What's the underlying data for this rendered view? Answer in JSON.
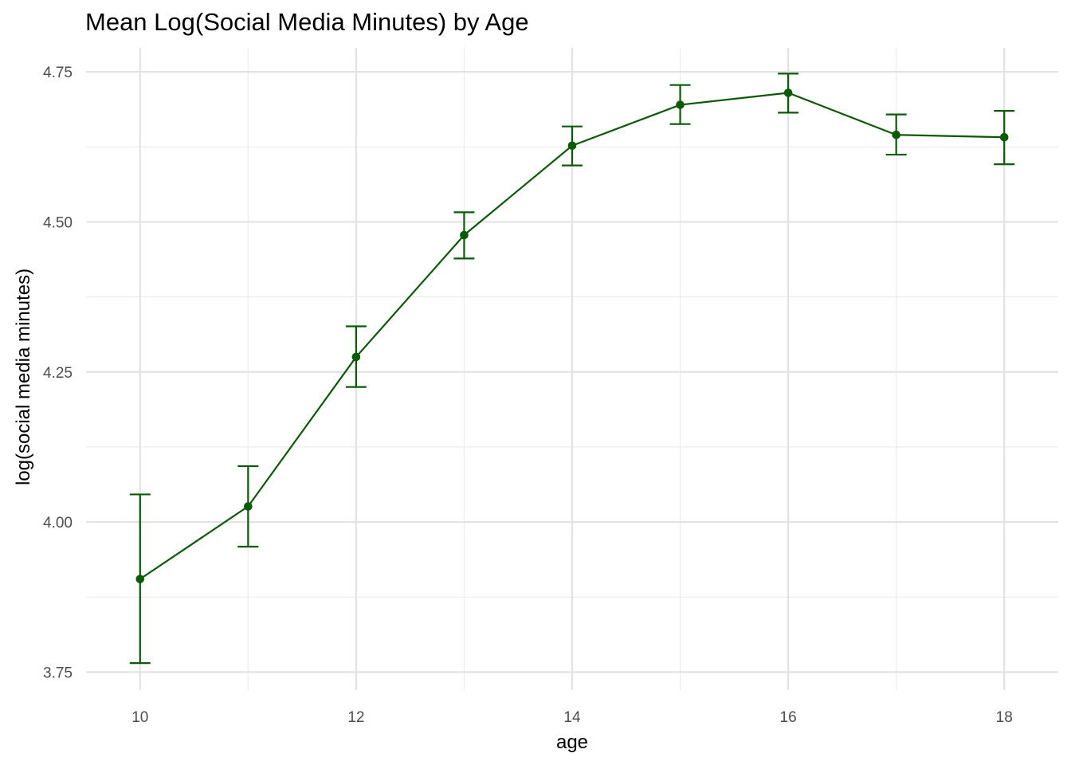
{
  "chart_data": {
    "type": "line",
    "title": "Mean Log(Social Media Minutes) by Age",
    "xlabel": "age",
    "ylabel": "log(social media minutes)",
    "x_ticks": [
      10,
      12,
      14,
      16,
      18
    ],
    "x_tick_labels": [
      "10",
      "12",
      "14",
      "16",
      "18"
    ],
    "y_ticks": [
      3.75,
      4.0,
      4.25,
      4.5,
      4.75
    ],
    "y_tick_labels": [
      "3.75",
      "4.00",
      "4.25",
      "4.50",
      "4.75"
    ],
    "xlim": [
      9.5,
      18.5
    ],
    "ylim": [
      3.72,
      4.79
    ],
    "grid": true,
    "series": [
      {
        "color": "#0b5a08",
        "points": [
          {
            "x": 10,
            "y": 3.905,
            "lower": 3.765,
            "upper": 4.046
          },
          {
            "x": 11,
            "y": 4.026,
            "lower": 3.959,
            "upper": 4.093
          },
          {
            "x": 12,
            "y": 4.275,
            "lower": 4.225,
            "upper": 4.326
          },
          {
            "x": 13,
            "y": 4.478,
            "lower": 4.439,
            "upper": 4.516
          },
          {
            "x": 14,
            "y": 4.627,
            "lower": 4.594,
            "upper": 4.659
          },
          {
            "x": 15,
            "y": 4.695,
            "lower": 4.663,
            "upper": 4.728
          },
          {
            "x": 16,
            "y": 4.715,
            "lower": 4.682,
            "upper": 4.747
          },
          {
            "x": 17,
            "y": 4.645,
            "lower": 4.612,
            "upper": 4.679
          },
          {
            "x": 18,
            "y": 4.641,
            "lower": 4.596,
            "upper": 4.685
          }
        ]
      }
    ]
  }
}
